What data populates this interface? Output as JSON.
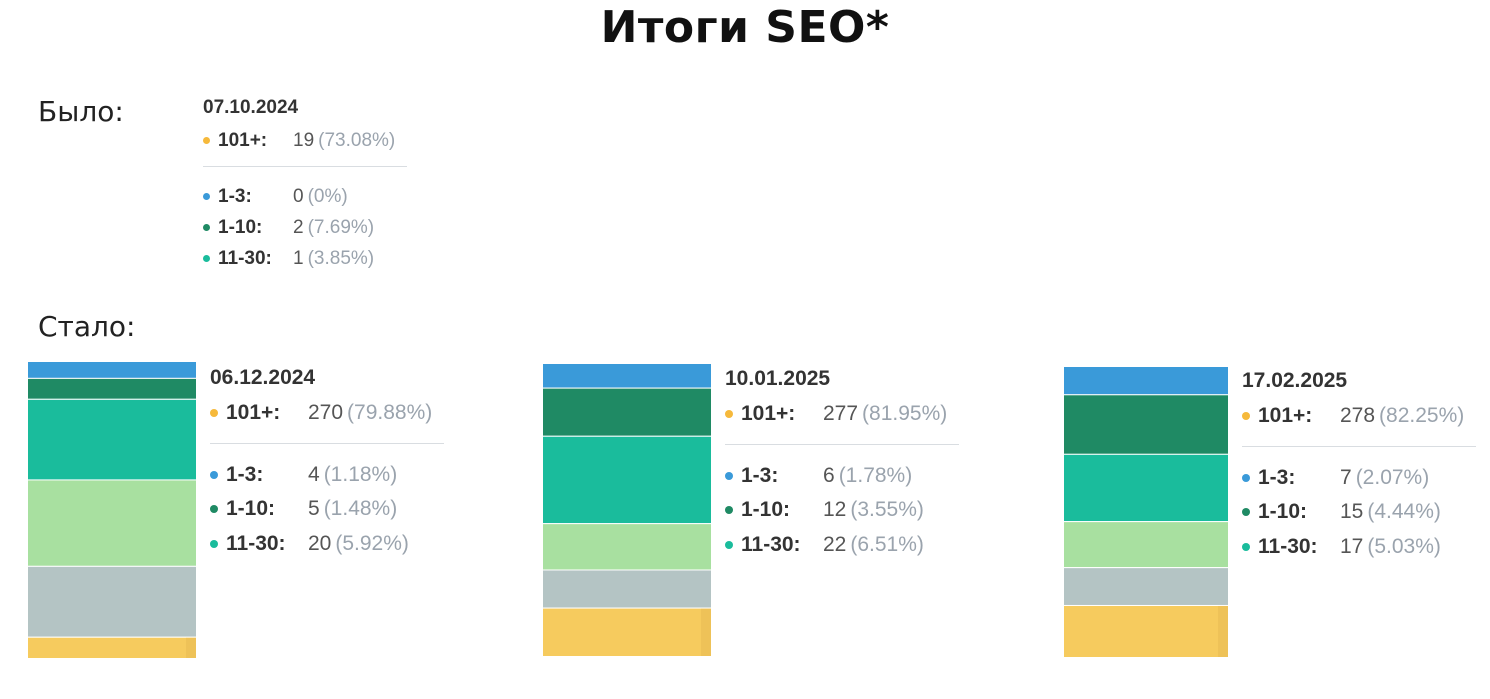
{
  "title": "Итоги SEO*",
  "sections": {
    "before_label": "Было:",
    "after_label": "Стало:"
  },
  "colors": {
    "top3": "#3a9ad9",
    "top10": "#1f8a64",
    "top30": "#1abc9c",
    "band_light_green": "#a8e0a0",
    "band_grey": "#b4c4c4",
    "top101": "#f6cb5e"
  },
  "before": {
    "date": "07.10.2024",
    "top101": {
      "label": "101+:",
      "count": "19",
      "pct": "(73.08%)"
    },
    "rows": [
      {
        "label": "1-3:",
        "count": "0",
        "pct": "(0%)",
        "color_key": "top3"
      },
      {
        "label": "1-10:",
        "count": "2",
        "pct": "(7.69%)",
        "color_key": "top10"
      },
      {
        "label": "11-30:",
        "count": "1",
        "pct": "(3.85%)",
        "color_key": "top30"
      }
    ]
  },
  "chart_data": [
    {
      "type": "bar",
      "stacked": true,
      "date": "06.12.2024",
      "top101": {
        "label": "101+:",
        "count": "270",
        "pct": "(79.88%)"
      },
      "rows": [
        {
          "label": "1-3:",
          "count": "4",
          "pct": "(1.18%)",
          "color_key": "top3"
        },
        {
          "label": "1-10:",
          "count": "5",
          "pct": "(1.48%)",
          "color_key": "top10"
        },
        {
          "label": "11-30:",
          "count": "20",
          "pct": "(5.92%)",
          "color_key": "top30"
        }
      ]
    },
    {
      "type": "bar",
      "stacked": true,
      "date": "10.01.2025",
      "top101": {
        "label": "101+:",
        "count": "277",
        "pct": "(81.95%)"
      },
      "rows": [
        {
          "label": "1-3:",
          "count": "6",
          "pct": "(1.78%)",
          "color_key": "top3"
        },
        {
          "label": "1-10:",
          "count": "12",
          "pct": "(3.55%)",
          "color_key": "top10"
        },
        {
          "label": "11-30:",
          "count": "22",
          "pct": "(6.51%)",
          "color_key": "top30"
        }
      ]
    },
    {
      "type": "bar",
      "stacked": true,
      "date": "17.02.2025",
      "top101": {
        "label": "101+:",
        "count": "278",
        "pct": "(82.25%)"
      },
      "rows": [
        {
          "label": "1-3:",
          "count": "7",
          "pct": "(2.07%)",
          "color_key": "top3"
        },
        {
          "label": "1-10:",
          "count": "15",
          "pct": "(4.44%)",
          "color_key": "top10"
        },
        {
          "label": "11-30:",
          "count": "17",
          "pct": "(5.03%)",
          "color_key": "top30"
        }
      ]
    }
  ]
}
